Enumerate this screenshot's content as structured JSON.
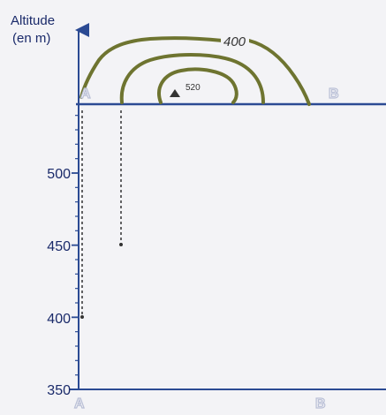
{
  "axis": {
    "title_line1": "Altitude",
    "title_line2": "(en m)",
    "ticks": [
      "500",
      "450",
      "400",
      "350"
    ]
  },
  "profile_line": {
    "start_label": "A",
    "end_label": "B"
  },
  "contours": {
    "outer_label": "400",
    "summit_label": "520"
  },
  "colors": {
    "contour": "#6e7430",
    "baseline": "#2b4a93",
    "axis": "#2b4a93",
    "text": "#1a2a6a",
    "point_label": "#b9bfd6"
  }
}
